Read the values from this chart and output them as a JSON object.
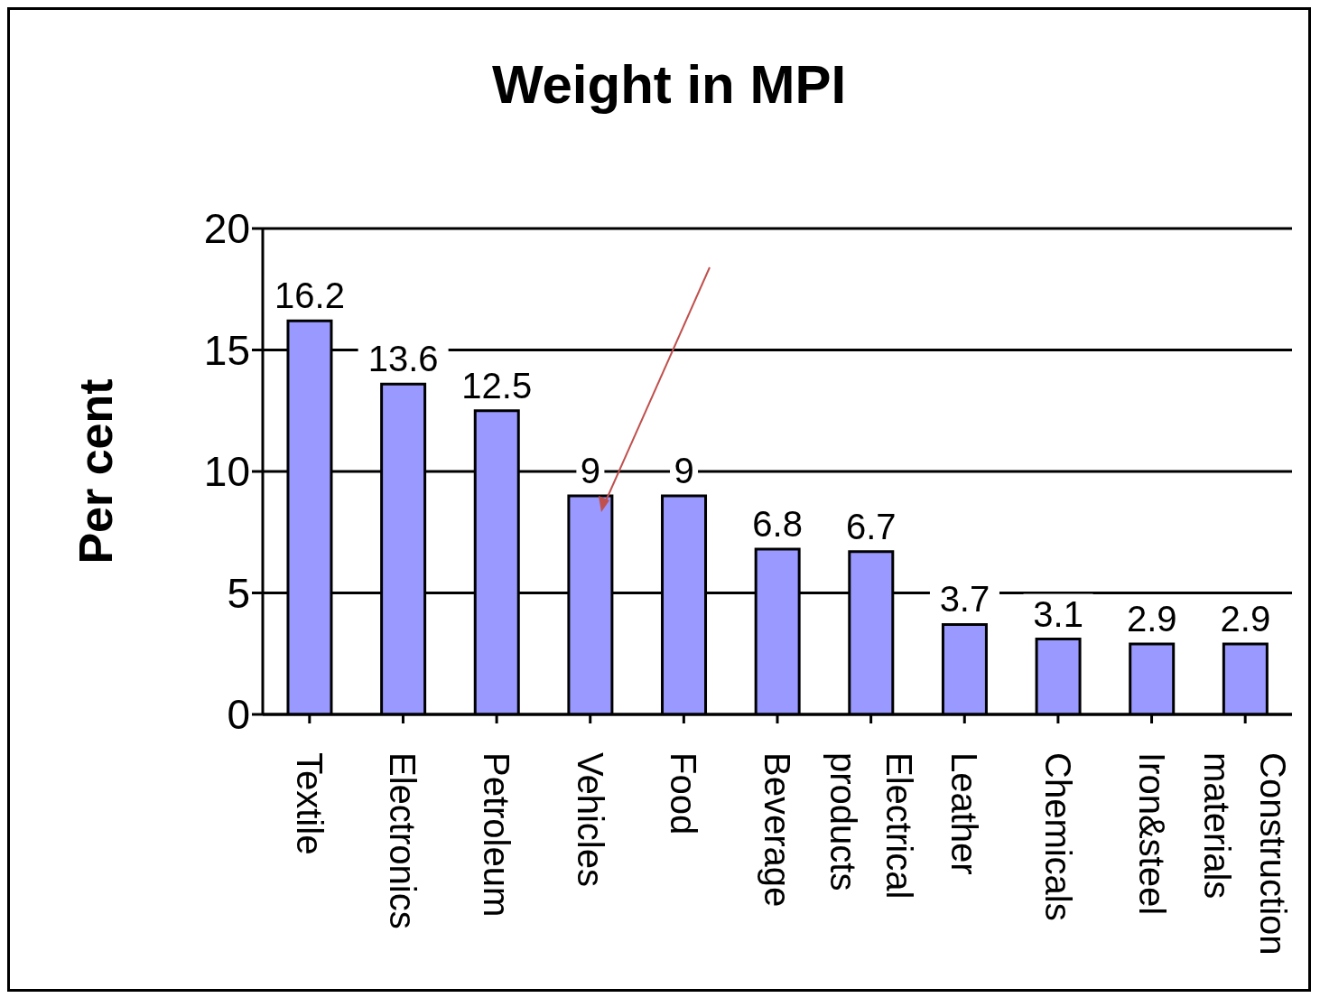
{
  "chart_data": {
    "type": "bar",
    "title": "Weight in MPI",
    "ylabel": "Per cent",
    "categories": [
      "Textile",
      "Electronics",
      "Petroleum",
      "Vehicles",
      "Food",
      "Beverage",
      "Electrical products",
      "Leather",
      "Chemicals",
      "Iron&steel",
      "Construction materials"
    ],
    "values": [
      16.2,
      13.6,
      12.5,
      9,
      9,
      6.8,
      6.7,
      3.7,
      3.1,
      2.9,
      2.9
    ],
    "color": "#9999ff",
    "ylim": [
      0,
      20
    ],
    "yticks": [
      0,
      5,
      10,
      15,
      20
    ],
    "grid": "y",
    "data_labels": true
  }
}
